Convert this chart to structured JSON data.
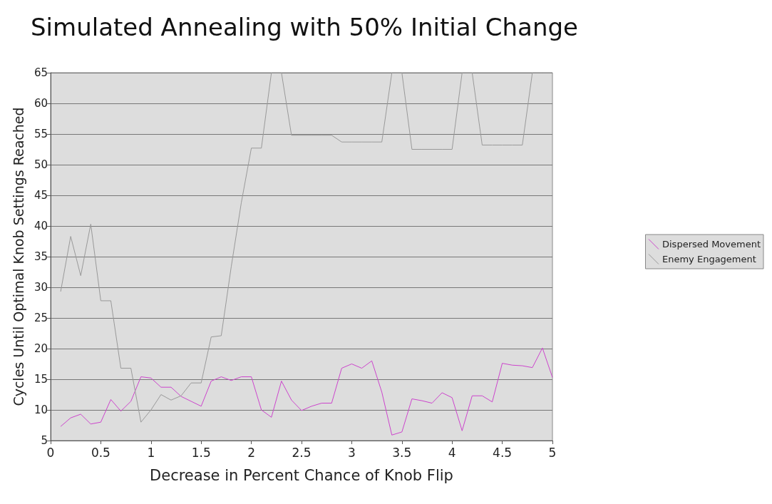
{
  "chart_data": {
    "type": "line",
    "title": "Simulated Annealing with 50% Initial Change",
    "xlabel": "Decrease in Percent Chance of Knob Flip",
    "ylabel": "Cycles Until Optimal Knob Settings Reached",
    "x": [
      0.1,
      0.2,
      0.3,
      0.4,
      0.5,
      0.6,
      0.7,
      0.8,
      0.9,
      1.0,
      1.1,
      1.2,
      1.3,
      1.4,
      1.5,
      1.6,
      1.7,
      1.8,
      1.9,
      2.0,
      2.1,
      2.2,
      2.3,
      2.4,
      2.5,
      2.6,
      2.7,
      2.8,
      2.9,
      3.0,
      3.1,
      3.2,
      3.3,
      3.4,
      3.5,
      3.6,
      3.7,
      3.8,
      3.9,
      4.0,
      4.1,
      4.2,
      4.3,
      4.4,
      4.5,
      4.6,
      4.7,
      4.8,
      4.9,
      5.0
    ],
    "series": [
      {
        "name": "Dispersed Movement",
        "color": "#cc44cc",
        "values": [
          7.3,
          8.7,
          9.3,
          7.7,
          8.0,
          11.7,
          9.8,
          11.4,
          15.4,
          15.2,
          13.7,
          13.7,
          12.2,
          11.4,
          10.6,
          14.7,
          15.4,
          14.8,
          15.4,
          15.4,
          10.0,
          8.8,
          14.7,
          11.6,
          9.9,
          10.6,
          11.1,
          11.1,
          16.8,
          17.5,
          16.8,
          18.0,
          12.9,
          5.9,
          6.4,
          11.8,
          11.5,
          11.1,
          12.8,
          12.0,
          6.6,
          12.3,
          12.3,
          11.3,
          17.6,
          17.3,
          17.2,
          16.9,
          20.1,
          15.3
        ]
      },
      {
        "name": "Enemy Engagement",
        "color": "#999999",
        "values": [
          29.3,
          38.3,
          31.9,
          40.3,
          27.8,
          27.8,
          16.8,
          16.8,
          8.0,
          10.0,
          12.5,
          11.6,
          12.3,
          14.4,
          14.4,
          21.9,
          22.1,
          33.4,
          43.8,
          52.7,
          52.7,
          65,
          65,
          54.8,
          54.8,
          54.8,
          54.8,
          54.8,
          53.7,
          53.7,
          53.7,
          53.7,
          53.7,
          65,
          65,
          52.5,
          52.5,
          52.5,
          52.5,
          52.5,
          65,
          65,
          53.2,
          53.2,
          53.2,
          53.2,
          53.2,
          65,
          65,
          65
        ]
      }
    ],
    "xlim": [
      0,
      5
    ],
    "xticks": [
      0,
      0.5,
      1,
      1.5,
      2,
      2.5,
      3,
      3.5,
      4,
      4.5,
      5
    ],
    "ylim": [
      5,
      65
    ],
    "yticks": [
      5,
      10,
      15,
      20,
      25,
      30,
      35,
      40,
      45,
      50,
      55,
      60,
      65
    ],
    "grid": "y",
    "legend": "right",
    "marker": "none",
    "line_style": "solid"
  }
}
